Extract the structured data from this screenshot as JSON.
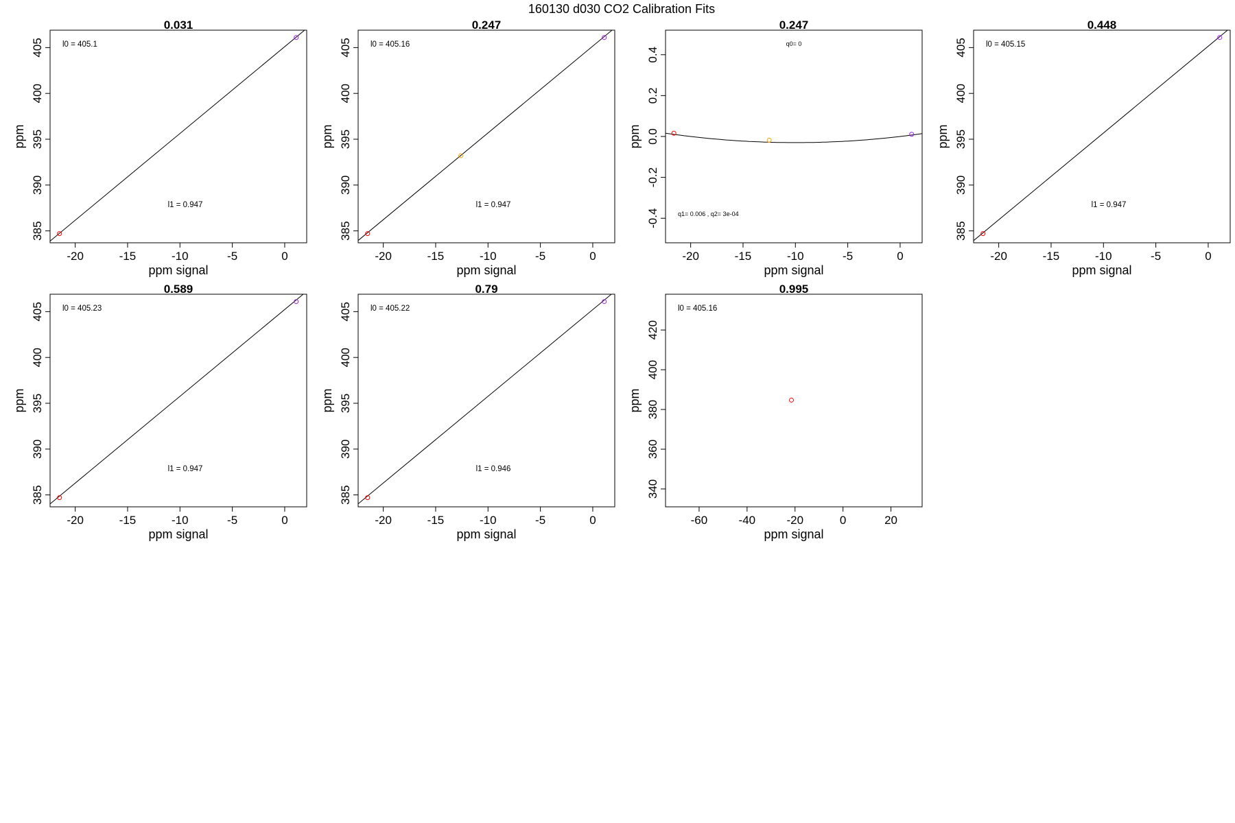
{
  "suptitle": "160130   d030   CO2 Calibration Fits",
  "colors": {
    "red": "#ff0000",
    "orange": "#ffa500",
    "purple": "#a020f0",
    "line": "#000000"
  },
  "chart_data": [
    {
      "type": "scatter",
      "title": "0.031",
      "xlabel": "ppm signal",
      "ylabel": "ppm",
      "xlim": [
        -22.4,
        2.1
      ],
      "ylim": [
        383.7,
        406.9
      ],
      "xticks": [
        -20,
        -15,
        -10,
        -5,
        0
      ],
      "yticks": [
        385,
        390,
        395,
        400,
        405
      ],
      "points": [
        {
          "x": -21.5,
          "y": 384.7,
          "color": "red"
        },
        {
          "x": 1.1,
          "y": 406.1,
          "color": "purple"
        }
      ],
      "fit": {
        "kind": "linear",
        "l0": 405.1,
        "l1": 0.947
      },
      "annotations": [
        {
          "text": "l0 =  405.1",
          "pos": "top-left"
        },
        {
          "text": "l1 =  0.947",
          "pos": "bottom-center"
        }
      ]
    },
    {
      "type": "scatter",
      "title": "0.247",
      "xlabel": "ppm signal",
      "ylabel": "ppm",
      "xlim": [
        -22.4,
        2.1
      ],
      "ylim": [
        383.7,
        406.9
      ],
      "xticks": [
        -20,
        -15,
        -10,
        -5,
        0
      ],
      "yticks": [
        385,
        390,
        395,
        400,
        405
      ],
      "points": [
        {
          "x": -21.5,
          "y": 384.7,
          "color": "red"
        },
        {
          "x": -12.6,
          "y": 393.2,
          "color": "orange"
        },
        {
          "x": 1.1,
          "y": 406.1,
          "color": "purple"
        }
      ],
      "fit": {
        "kind": "linear",
        "l0": 405.16,
        "l1": 0.947
      },
      "annotations": [
        {
          "text": "l0 =  405.16",
          "pos": "top-left"
        },
        {
          "text": "l1 =  0.947",
          "pos": "bottom-center"
        }
      ]
    },
    {
      "type": "scatter",
      "title": "0.247",
      "xlabel": "ppm signal",
      "ylabel": "ppm",
      "xlim": [
        -22.4,
        2.1
      ],
      "ylim": [
        -0.52,
        0.52
      ],
      "xticks": [
        -20,
        -15,
        -10,
        -5,
        0
      ],
      "yticks": [
        -0.4,
        -0.2,
        0.0,
        0.2,
        0.4
      ],
      "points": [
        {
          "x": -21.6,
          "y": 0.016,
          "color": "red"
        },
        {
          "x": -12.5,
          "y": -0.018,
          "color": "orange"
        },
        {
          "x": 1.1,
          "y": 0.011,
          "color": "purple"
        }
      ],
      "fit": {
        "kind": "quadratic",
        "q0": 0,
        "q1": 0.006,
        "q2": 0.0003
      },
      "annotations": [
        {
          "text": "q0= 0",
          "pos": "top-center"
        },
        {
          "text": "q1= 0.006 , q2= 3e-04",
          "pos": "bottom-left"
        }
      ]
    },
    {
      "type": "scatter",
      "title": "0.448",
      "xlabel": "ppm signal",
      "ylabel": "ppm",
      "xlim": [
        -22.4,
        2.1
      ],
      "ylim": [
        383.7,
        406.9
      ],
      "xticks": [
        -20,
        -15,
        -10,
        -5,
        0
      ],
      "yticks": [
        385,
        390,
        395,
        400,
        405
      ],
      "points": [
        {
          "x": -21.5,
          "y": 384.7,
          "color": "red"
        },
        {
          "x": 1.1,
          "y": 406.1,
          "color": "purple"
        }
      ],
      "fit": {
        "kind": "linear",
        "l0": 405.15,
        "l1": 0.947
      },
      "annotations": [
        {
          "text": "l0 =  405.15",
          "pos": "top-left"
        },
        {
          "text": "l1 =  0.947",
          "pos": "bottom-center"
        }
      ]
    },
    {
      "type": "scatter",
      "title": "0.589",
      "xlabel": "ppm signal",
      "ylabel": "ppm",
      "xlim": [
        -22.4,
        2.1
      ],
      "ylim": [
        383.7,
        406.9
      ],
      "xticks": [
        -20,
        -15,
        -10,
        -5,
        0
      ],
      "yticks": [
        385,
        390,
        395,
        400,
        405
      ],
      "points": [
        {
          "x": -21.5,
          "y": 384.7,
          "color": "red"
        },
        {
          "x": 1.1,
          "y": 406.1,
          "color": "purple"
        }
      ],
      "fit": {
        "kind": "linear",
        "l0": 405.23,
        "l1": 0.947
      },
      "annotations": [
        {
          "text": "l0 =  405.23",
          "pos": "top-left"
        },
        {
          "text": "l1 =  0.947",
          "pos": "bottom-center"
        }
      ]
    },
    {
      "type": "scatter",
      "title": "0.79",
      "xlabel": "ppm signal",
      "ylabel": "ppm",
      "xlim": [
        -22.4,
        2.1
      ],
      "ylim": [
        383.7,
        406.9
      ],
      "xticks": [
        -20,
        -15,
        -10,
        -5,
        0
      ],
      "yticks": [
        385,
        390,
        395,
        400,
        405
      ],
      "points": [
        {
          "x": -21.5,
          "y": 384.7,
          "color": "red"
        },
        {
          "x": 1.1,
          "y": 406.1,
          "color": "purple"
        }
      ],
      "fit": {
        "kind": "linear",
        "l0": 405.22,
        "l1": 0.946
      },
      "annotations": [
        {
          "text": "l0 =  405.22",
          "pos": "top-left"
        },
        {
          "text": "l1 =  0.946",
          "pos": "bottom-center"
        }
      ]
    },
    {
      "type": "scatter",
      "title": "0.995",
      "xlabel": "ppm signal",
      "ylabel": "ppm",
      "xlim": [
        -74,
        33
      ],
      "ylim": [
        331,
        438
      ],
      "xticks": [
        -60,
        -40,
        -20,
        0,
        20
      ],
      "yticks": [
        340,
        360,
        380,
        400,
        420
      ],
      "points": [
        {
          "x": -21.5,
          "y": 384.7,
          "color": "red"
        }
      ],
      "fit": null,
      "annotations": [
        {
          "text": "l0 =  405.16",
          "pos": "top-left"
        }
      ]
    }
  ]
}
